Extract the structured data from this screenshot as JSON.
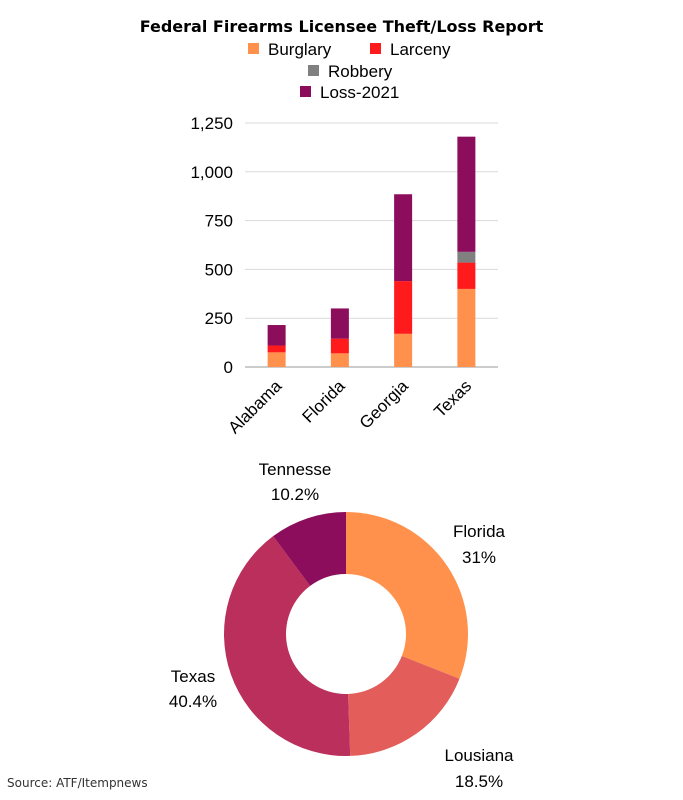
{
  "title": "Federal Firearms Licensee Theft/Loss Report",
  "source": "Source: ATF/Itempnews",
  "chart_data": [
    {
      "type": "bar",
      "stacked": true,
      "categories": [
        "Alabama",
        "Florida",
        "Georgia",
        "Texas"
      ],
      "series": [
        {
          "name": "Burglary",
          "color": "#FF914D",
          "values": [
            75,
            70,
            170,
            400
          ]
        },
        {
          "name": "Larceny",
          "color": "#FF1B1B",
          "values": [
            35,
            75,
            270,
            135
          ]
        },
        {
          "name": "Robbery",
          "color": "#808080",
          "values": [
            0,
            0,
            0,
            55
          ]
        },
        {
          "name": "Loss-2021",
          "color": "#8B0D5B",
          "values": [
            105,
            155,
            445,
            590
          ]
        }
      ],
      "yticks": [
        "0",
        "250",
        "500",
        "750",
        "1,000",
        "1,250"
      ],
      "ylim": [
        0,
        1250
      ],
      "grid": true,
      "legend": "top-center"
    },
    {
      "type": "pie",
      "donut": true,
      "slices": [
        {
          "label": "Florida",
          "pct_label": "31%",
          "value": 31,
          "color": "#FF914D"
        },
        {
          "label": "Lousiana",
          "pct_label": "18.5%",
          "value": 18.5,
          "color": "#E35D5B"
        },
        {
          "label": "Texas",
          "pct_label": "40.4%",
          "value": 40.4,
          "color": "#BA2F5C"
        },
        {
          "label": "Tennesse",
          "pct_label": "10.2%",
          "value": 10.2,
          "color": "#8B0D5B"
        }
      ]
    }
  ]
}
